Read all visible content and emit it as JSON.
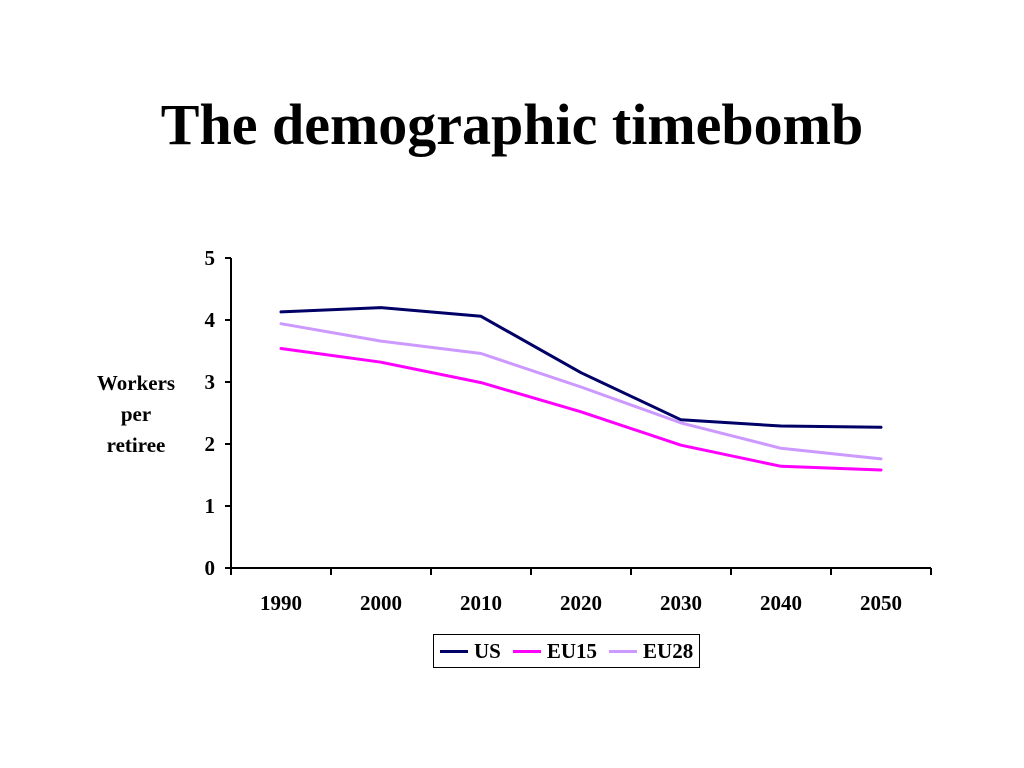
{
  "slide": {
    "title": "The demographic timebomb"
  },
  "chart_data": {
    "type": "line",
    "title": "",
    "ylabel_lines": [
      "Workers",
      "per",
      "retiree"
    ],
    "xlabel": "",
    "categories": [
      "1990",
      "2000",
      "2010",
      "2020",
      "2030",
      "2040",
      "2050"
    ],
    "ylim": [
      0,
      5
    ],
    "yticks": [
      0,
      1,
      2,
      3,
      4,
      5
    ],
    "grid": false,
    "legend_position": "bottom",
    "series": [
      {
        "name": "US",
        "color": "#000066",
        "values": [
          4.13,
          4.2,
          4.06,
          3.15,
          2.39,
          2.29,
          2.27
        ]
      },
      {
        "name": "EU15",
        "color": "#ff00ff",
        "values": [
          3.54,
          3.32,
          2.99,
          2.52,
          1.98,
          1.64,
          1.58
        ]
      },
      {
        "name": "EU28",
        "color": "#cc99ff",
        "values": [
          3.94,
          3.66,
          3.46,
          2.92,
          2.34,
          1.93,
          1.76
        ]
      }
    ]
  }
}
